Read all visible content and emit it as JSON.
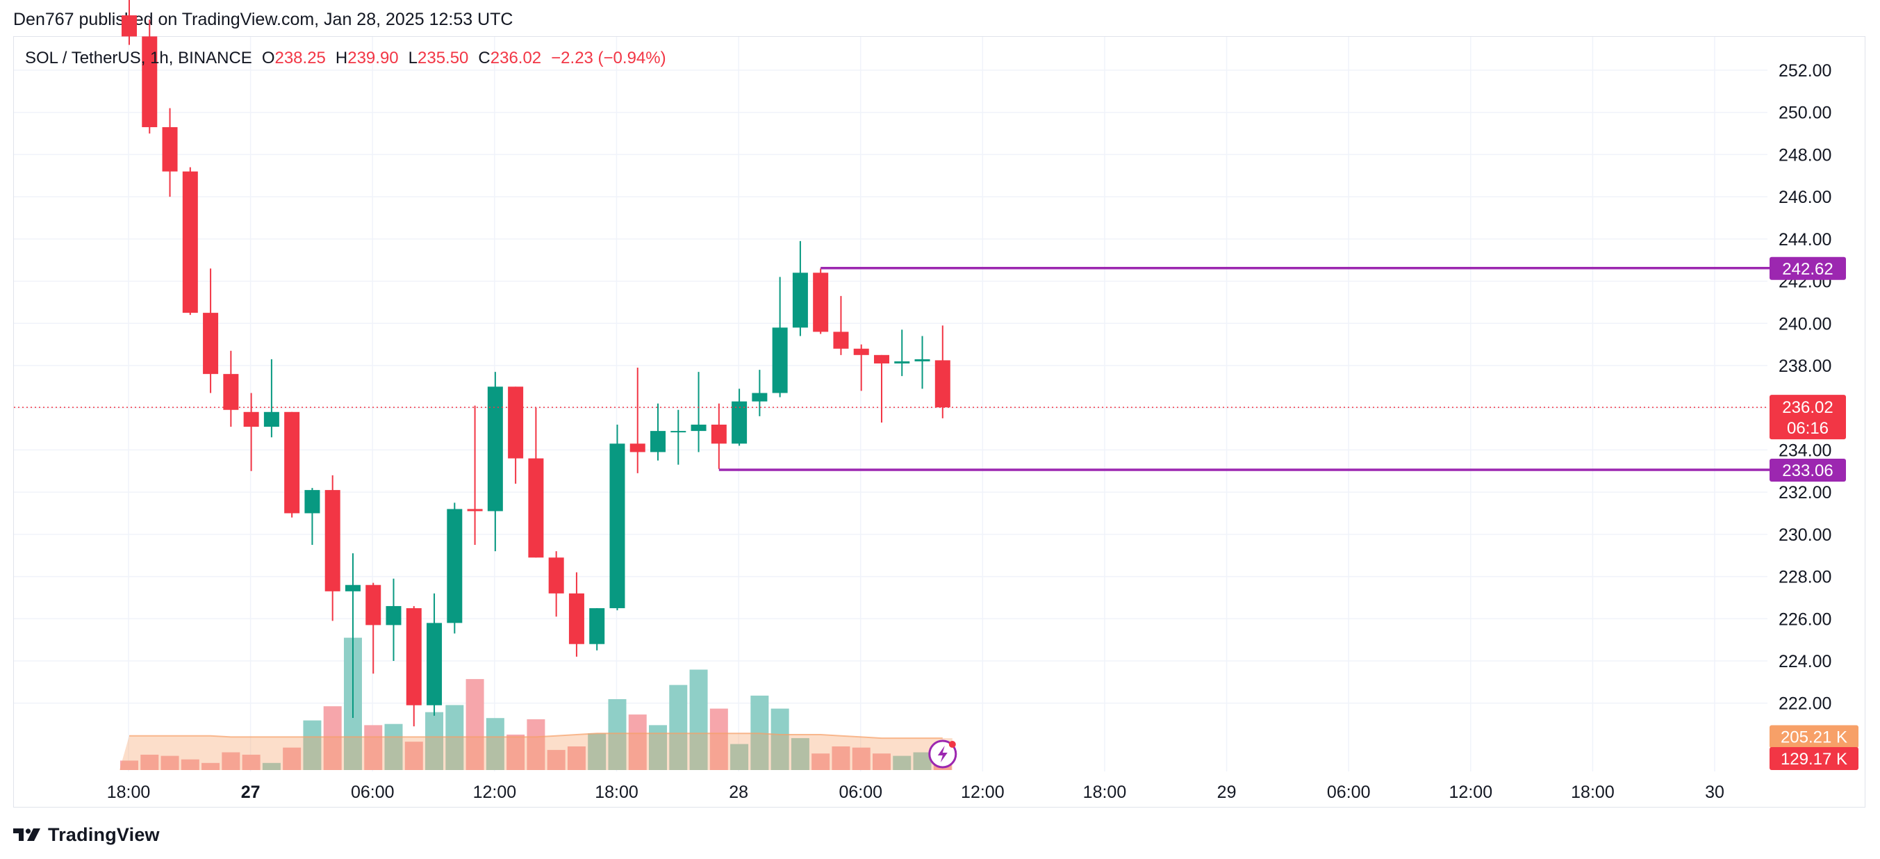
{
  "header": {
    "published_text": "Den767 published on TradingView.com, Jan 28, 2025 12:53 UTC"
  },
  "legend": {
    "symbol": "SOL / TetherUS, 1h, BINANCE",
    "o_label": "O",
    "o_value": "238.25",
    "h_label": "H",
    "h_value": "239.90",
    "l_label": "L",
    "l_value": "235.50",
    "c_label": "C",
    "c_value": "236.02",
    "change": "−2.23 (−0.94%)"
  },
  "footer": {
    "brand": "TradingView"
  },
  "colors": {
    "up": "#089981",
    "down": "#f23645",
    "vol_up": "#8fcfc7",
    "vol_down": "#f6a6ab",
    "vol_ma": "#f7a068",
    "level_line": "#9c27b0",
    "price_line": "#f23645",
    "grid": "#f0f3fa"
  },
  "chart_data": {
    "type": "candlestick",
    "symbol": "SOL / TetherUS",
    "timeframe": "1h",
    "exchange": "BINANCE",
    "y_axis": {
      "ticks": [
        "252.00",
        "250.00",
        "248.00",
        "246.00",
        "244.00",
        "242.00",
        "240.00",
        "238.00",
        "236.00",
        "234.00",
        "232.00",
        "230.00",
        "228.00",
        "226.00",
        "224.00",
        "222.00"
      ],
      "ylim": [
        220.4,
        253.5
      ]
    },
    "x_axis": {
      "ticks": [
        {
          "label": "18:00",
          "bold": false,
          "hour": 0
        },
        {
          "label": "27",
          "bold": true,
          "hour": 6
        },
        {
          "label": "06:00",
          "bold": false,
          "hour": 12
        },
        {
          "label": "12:00",
          "bold": false,
          "hour": 18
        },
        {
          "label": "18:00",
          "bold": false,
          "hour": 24
        },
        {
          "label": "28",
          "bold": false,
          "hour": 30
        },
        {
          "label": "06:00",
          "bold": false,
          "hour": 36
        },
        {
          "label": "12:00",
          "bold": false,
          "hour": 42
        },
        {
          "label": "18:00",
          "bold": false,
          "hour": 48
        },
        {
          "label": "29",
          "bold": false,
          "hour": 54
        },
        {
          "label": "06:00",
          "bold": false,
          "hour": 60
        },
        {
          "label": "12:00",
          "bold": false,
          "hour": 66
        },
        {
          "label": "18:00",
          "bold": false,
          "hour": 72
        },
        {
          "label": "30",
          "bold": false,
          "hour": 78
        }
      ]
    },
    "candles": [
      {
        "o": 254.6,
        "h": 255.5,
        "l": 253.2,
        "c": 253.6
      },
      {
        "o": 253.6,
        "h": 254.4,
        "l": 249.0,
        "c": 249.3
      },
      {
        "o": 249.3,
        "h": 250.2,
        "l": 246.0,
        "c": 247.2
      },
      {
        "o": 247.2,
        "h": 247.4,
        "l": 240.4,
        "c": 240.5
      },
      {
        "o": 240.5,
        "h": 242.6,
        "l": 236.7,
        "c": 237.6
      },
      {
        "o": 237.6,
        "h": 238.7,
        "l": 235.1,
        "c": 235.9
      },
      {
        "o": 235.8,
        "h": 236.7,
        "l": 233.0,
        "c": 235.1
      },
      {
        "o": 235.1,
        "h": 238.3,
        "l": 234.6,
        "c": 235.8
      },
      {
        "o": 235.8,
        "h": 235.8,
        "l": 230.8,
        "c": 231.0
      },
      {
        "o": 231.0,
        "h": 232.2,
        "l": 229.5,
        "c": 232.1
      },
      {
        "o": 232.1,
        "h": 232.8,
        "l": 225.9,
        "c": 227.3
      },
      {
        "o": 227.3,
        "h": 229.1,
        "l": 221.3,
        "c": 227.6
      },
      {
        "o": 227.6,
        "h": 227.7,
        "l": 223.4,
        "c": 225.7
      },
      {
        "o": 225.7,
        "h": 227.9,
        "l": 224.0,
        "c": 226.6
      },
      {
        "o": 226.5,
        "h": 226.6,
        "l": 220.9,
        "c": 221.9
      },
      {
        "o": 221.9,
        "h": 227.2,
        "l": 221.4,
        "c": 225.8
      },
      {
        "o": 225.8,
        "h": 231.5,
        "l": 225.3,
        "c": 231.2
      },
      {
        "o": 231.2,
        "h": 236.1,
        "l": 229.5,
        "c": 231.1
      },
      {
        "o": 231.1,
        "h": 237.7,
        "l": 229.2,
        "c": 237.0
      },
      {
        "o": 237.0,
        "h": 237.0,
        "l": 232.4,
        "c": 233.6
      },
      {
        "o": 233.6,
        "h": 236.0,
        "l": 228.9,
        "c": 228.9
      },
      {
        "o": 228.9,
        "h": 229.2,
        "l": 226.1,
        "c": 227.2
      },
      {
        "o": 227.2,
        "h": 228.2,
        "l": 224.2,
        "c": 224.8
      },
      {
        "o": 224.8,
        "h": 226.5,
        "l": 224.5,
        "c": 226.5
      },
      {
        "o": 226.5,
        "h": 235.2,
        "l": 226.4,
        "c": 234.3
      },
      {
        "o": 234.3,
        "h": 237.9,
        "l": 232.9,
        "c": 233.9
      },
      {
        "o": 233.9,
        "h": 236.2,
        "l": 233.5,
        "c": 234.9
      },
      {
        "o": 234.9,
        "h": 235.9,
        "l": 233.3,
        "c": 234.9
      },
      {
        "o": 234.9,
        "h": 237.7,
        "l": 233.9,
        "c": 235.2
      },
      {
        "o": 235.2,
        "h": 236.2,
        "l": 233.1,
        "c": 234.3
      },
      {
        "o": 234.3,
        "h": 236.9,
        "l": 234.2,
        "c": 236.3
      },
      {
        "o": 236.3,
        "h": 237.8,
        "l": 235.6,
        "c": 236.7
      },
      {
        "o": 236.7,
        "h": 242.2,
        "l": 236.5,
        "c": 239.8
      },
      {
        "o": 239.8,
        "h": 243.9,
        "l": 239.4,
        "c": 242.4
      },
      {
        "o": 242.4,
        "h": 242.6,
        "l": 239.5,
        "c": 239.6
      },
      {
        "o": 239.6,
        "h": 241.3,
        "l": 238.5,
        "c": 238.8
      },
      {
        "o": 238.8,
        "h": 239.0,
        "l": 236.8,
        "c": 238.5
      },
      {
        "o": 238.5,
        "h": 238.5,
        "l": 235.3,
        "c": 238.1
      },
      {
        "o": 238.1,
        "h": 239.7,
        "l": 237.5,
        "c": 238.2
      },
      {
        "o": 238.2,
        "h": 239.4,
        "l": 236.9,
        "c": 238.3
      },
      {
        "o": 238.25,
        "h": 239.9,
        "l": 235.5,
        "c": 236.02
      }
    ],
    "volume": [
      8,
      13,
      12,
      9,
      6,
      15,
      13,
      6,
      19,
      42,
      54,
      112,
      38,
      39,
      24,
      49,
      55,
      77,
      44,
      30,
      43,
      17,
      20,
      31,
      60,
      47,
      38,
      72,
      85,
      52,
      22,
      63,
      52,
      27,
      14,
      20,
      19,
      14,
      12,
      15,
      10
    ],
    "volume_ma": [
      29,
      29,
      29,
      29,
      29,
      28,
      28,
      28,
      28,
      28,
      28,
      28,
      28,
      28,
      28,
      28,
      28,
      28,
      28,
      28,
      28,
      29,
      30,
      31,
      31,
      31,
      31,
      31,
      31,
      31,
      31,
      31,
      30,
      30,
      30,
      29,
      28,
      27,
      27,
      27,
      27
    ],
    "volume_ylim": [
      0,
      120
    ],
    "horizontal_levels": [
      {
        "price": 242.62,
        "label": "242.62",
        "start_index": 34
      },
      {
        "price": 233.06,
        "label": "233.06",
        "start_index": 29
      }
    ],
    "last_price": {
      "price": 236.02,
      "label": "236.02",
      "countdown": "06:16"
    },
    "volume_labels": [
      {
        "label": "205.21 K",
        "value": 28.5,
        "color": "#f7a068"
      },
      {
        "label": "129.17 K",
        "value": 10,
        "color": "#f23645"
      }
    ]
  }
}
